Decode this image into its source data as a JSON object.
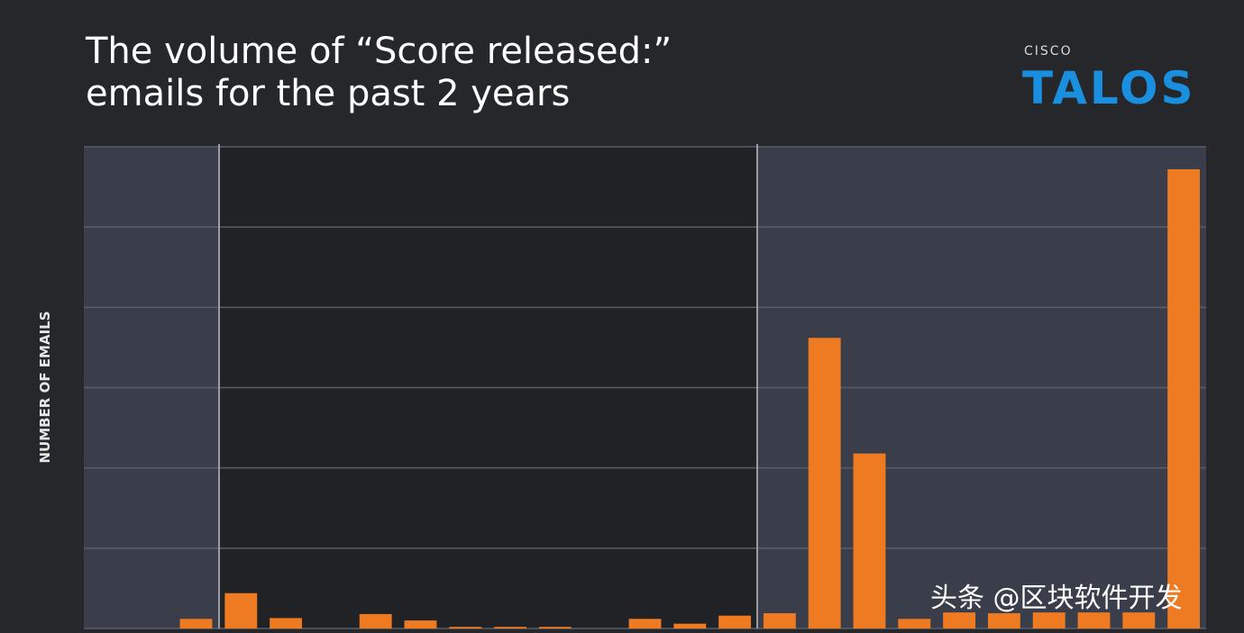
{
  "chart_data": {
    "type": "bar",
    "title_lines": [
      "The volume of “Score released:”",
      "emails for the past 2 years"
    ],
    "ylabel": "NUMBER OF EMAILS",
    "logo": {
      "brand": "CISCO",
      "name": "TALOS"
    },
    "watermark": "头条 @区块软件开发",
    "categories": [
      null,
      null,
      null,
      null,
      null,
      null,
      null,
      null,
      null,
      null,
      null,
      null,
      null,
      null,
      null,
      null,
      null,
      null,
      null,
      null,
      null,
      null,
      null,
      null,
      null
    ],
    "values": [
      0,
      0,
      0.12,
      0.44,
      0.13,
      0,
      0.18,
      0.1,
      0.02,
      0.02,
      0.02,
      0,
      0.12,
      0.06,
      0.16,
      0.19,
      3.62,
      2.18,
      0.12,
      0.2,
      0.19,
      0.2,
      0.2,
      0.2,
      5.72
    ],
    "color": "#ee7a22",
    "ylim": [
      0,
      6
    ],
    "gridlines": [
      0,
      1,
      2,
      3,
      4,
      5,
      6
    ],
    "grid": true
  }
}
